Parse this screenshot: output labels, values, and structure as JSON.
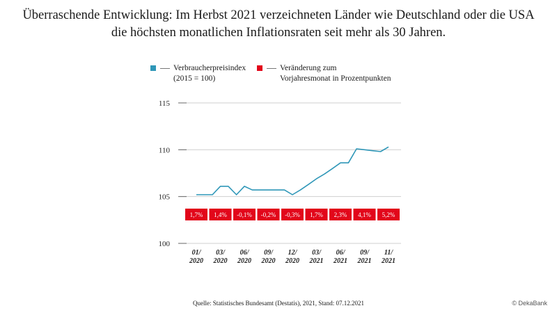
{
  "title": {
    "line1": "Überraschende Entwicklung: Im Herbst 2021 verzeichneten Länder wie Deutschland oder die USA",
    "line2": "die höchsten monatlichen Inflationsraten seit mehr als 30 Jahren."
  },
  "legend": {
    "item1": {
      "line1": "Verbraucherpreisindex",
      "line2": "(2015 = 100)",
      "color": "#2f97b8"
    },
    "item2": {
      "line1": "Veränderung zum",
      "line2": "Vorjahresmonat in Prozentpunkten",
      "color": "#e2061a"
    }
  },
  "source": "Quelle: Statistisches Bundesamt (Destatis), 2021, Stand: 07.12.2021",
  "brand": "© DekaBank",
  "chart_data": {
    "type": "line",
    "ylim": [
      100,
      115
    ],
    "yticks": [
      100,
      105,
      110,
      115
    ],
    "grid": true,
    "categories": [
      "01/\n2020",
      "03/\n2020",
      "06/\n2020",
      "09/\n2020",
      "12/\n2020",
      "03/\n2021",
      "06/\n2021",
      "09/\n2021",
      "11/\n2021"
    ],
    "series": [
      {
        "name": "Verbraucherpreisindex (2015 = 100)",
        "color": "#2f97b8",
        "x": [
          0,
          0.33,
          0.67,
          1,
          1.33,
          1.67,
          2,
          2.33,
          2.67,
          3,
          3.33,
          3.67,
          4,
          4.33,
          4.67,
          5,
          5.33,
          5.67,
          6,
          6.33,
          6.67,
          7,
          7.33,
          7.67,
          8
        ],
        "values": [
          105.2,
          105.2,
          105.2,
          106.1,
          106.1,
          105.2,
          106.1,
          105.7,
          105.7,
          105.7,
          105.7,
          105.7,
          105.2,
          105.7,
          106.3,
          106.9,
          107.4,
          108.0,
          108.6,
          108.6,
          110.1,
          110.0,
          109.9,
          109.8,
          110.3
        ]
      }
    ],
    "changes": [
      "1,7%",
      "1,4%",
      "-0,1%",
      "-0,2%",
      "-0,3%",
      "1,7%",
      "2,3%",
      "4,1%",
      "5,2%"
    ],
    "changes_color": "#e2061a"
  }
}
